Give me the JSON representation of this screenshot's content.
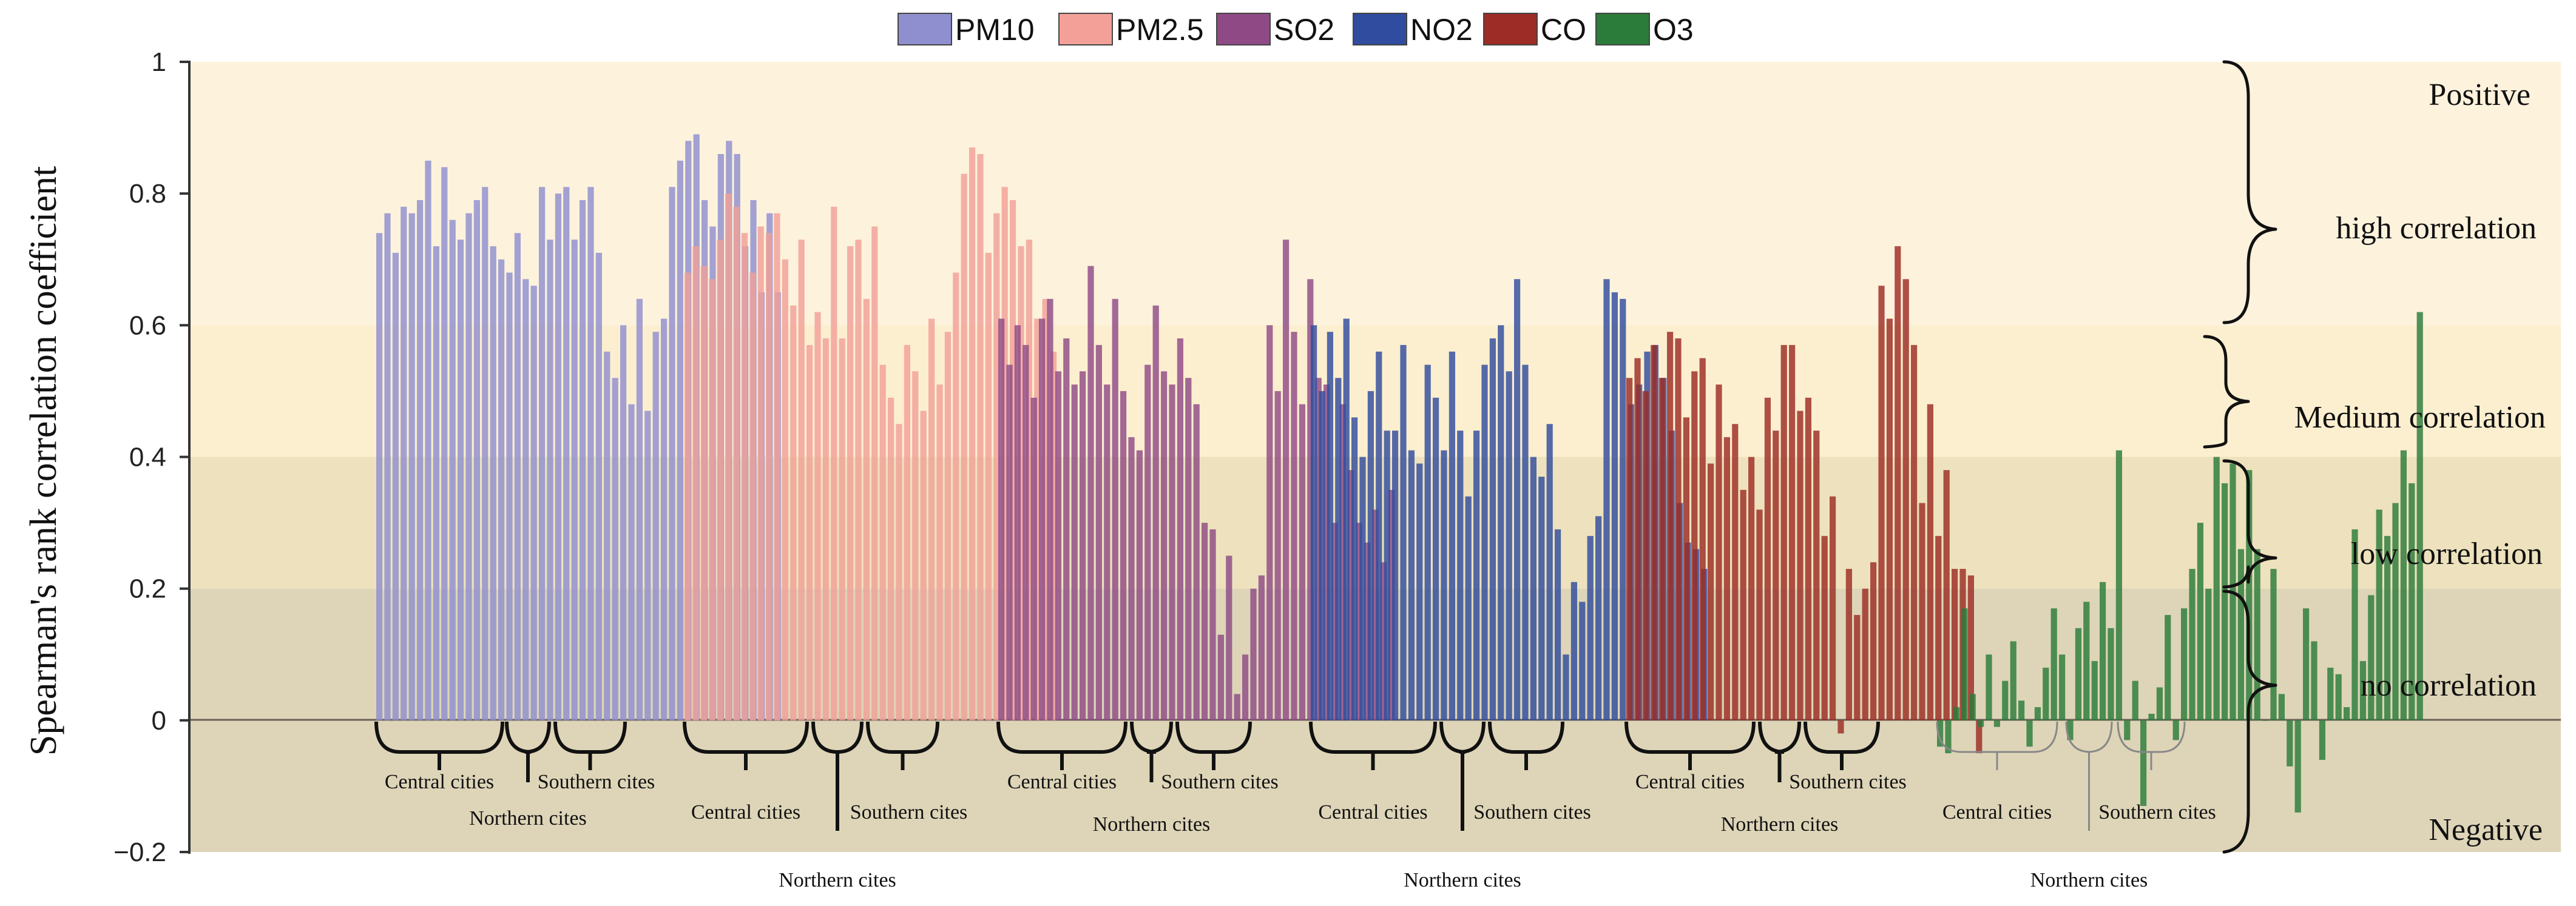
{
  "chart_data": {
    "type": "bar",
    "title": "",
    "ylabel": "Spearman's rank correlation coefficient",
    "xlabel": "",
    "ylim": [
      -0.2,
      1.0
    ],
    "yticks": [
      "1",
      "0.8",
      "0.6",
      "0.4",
      "0.2",
      "0",
      "−0.2"
    ],
    "legend_position": "top-center",
    "bands": [
      {
        "name": "high",
        "from": 0.6,
        "to": 1.0,
        "color": "#fdf2dc"
      },
      {
        "name": "medium",
        "from": 0.4,
        "to": 0.6,
        "color": "#fcefcf"
      },
      {
        "name": "low",
        "from": 0.2,
        "to": 0.4,
        "color": "#ede2bd"
      },
      {
        "name": "none",
        "from": -0.2,
        "to": 0.2,
        "color": "#ded5b8"
      }
    ],
    "bracket_labels": {
      "positive": "Positive",
      "high": "high correlation",
      "medium": "Medium correlation",
      "low": "low correlation",
      "none": "no correlation",
      "negative": "Negative"
    },
    "group_labels": {
      "central": "Central cities",
      "northern": "Northern cites",
      "southern": "Southern cites"
    },
    "series": [
      {
        "name": "PM10",
        "color": "#8f8fcf",
        "values": [
          0.74,
          0.77,
          0.71,
          0.78,
          0.77,
          0.79,
          0.85,
          0.72,
          0.84,
          0.76,
          0.73,
          0.77,
          0.79,
          0.81,
          0.72,
          0.7,
          0.68,
          0.74,
          0.67,
          0.66,
          0.81,
          0.73,
          0.8,
          0.81,
          0.73,
          0.79,
          0.81,
          0.71,
          0.56,
          0.52,
          0.6,
          0.48,
          0.64,
          0.47,
          0.59,
          0.61,
          0.81,
          0.85,
          0.88,
          0.89,
          0.79,
          0.75,
          0.86,
          0.88,
          0.86,
          0.72,
          0.79,
          0.65,
          0.77,
          0.65
        ]
      },
      {
        "name": "PM2.5",
        "color": "#f2a098",
        "values": [
          0.68,
          0.72,
          0.69,
          0.67,
          0.73,
          0.8,
          0.78,
          0.74,
          0.68,
          0.75,
          0.74,
          0.77,
          0.7,
          0.63,
          0.73,
          0.57,
          0.62,
          0.58,
          0.78,
          0.58,
          0.72,
          0.73,
          0.64,
          0.75,
          0.54,
          0.49,
          0.45,
          0.57,
          0.53,
          0.47,
          0.61,
          0.51,
          0.59,
          0.68,
          0.83,
          0.87,
          0.86,
          0.71,
          0.77,
          0.81,
          0.79,
          0.72,
          0.73,
          0.61,
          0.64,
          0.56
        ]
      },
      {
        "name": "SO2",
        "color": "#8f4a86",
        "values": [
          0.61,
          0.54,
          0.6,
          0.57,
          0.49,
          0.61,
          0.64,
          0.53,
          0.58,
          0.51,
          0.53,
          0.69,
          0.57,
          0.51,
          0.64,
          0.5,
          0.43,
          0.41,
          0.54,
          0.63,
          0.53,
          0.51,
          0.58,
          0.52,
          0.48,
          0.3,
          0.29,
          0.13,
          0.25,
          0.04,
          0.1,
          0.2,
          0.22,
          0.6,
          0.5,
          0.73,
          0.59,
          0.48,
          0.67,
          0.52,
          0.51,
          0.3,
          0.48,
          0.38,
          0.3,
          0.27,
          0.32,
          0.24,
          0.35
        ]
      },
      {
        "name": "NO2",
        "color": "#2f4c9e",
        "values": [
          0.6,
          0.5,
          0.59,
          0.52,
          0.61,
          0.46,
          0.4,
          0.5,
          0.56,
          0.44,
          0.44,
          0.57,
          0.41,
          0.39,
          0.54,
          0.49,
          0.41,
          0.56,
          0.44,
          0.34,
          0.44,
          0.54,
          0.58,
          0.6,
          0.53,
          0.67,
          0.54,
          0.4,
          0.37,
          0.45,
          0.29,
          0.1,
          0.21,
          0.18,
          0.28,
          0.31,
          0.67,
          0.65,
          0.64,
          0.48,
          0.51,
          0.56,
          0.57,
          0.52,
          0.44,
          0.33,
          0.27,
          0.26,
          0.23
        ]
      },
      {
        "name": "CO",
        "color": "#9c2c25",
        "values": [
          0.52,
          0.55,
          0.5,
          0.57,
          0.52,
          0.59,
          0.58,
          0.46,
          0.53,
          0.55,
          0.39,
          0.51,
          0.43,
          0.45,
          0.35,
          0.4,
          0.32,
          0.49,
          0.44,
          0.57,
          0.57,
          0.47,
          0.49,
          0.44,
          0.28,
          0.34,
          -0.02,
          0.23,
          0.16,
          0.2,
          0.24,
          0.66,
          0.61,
          0.72,
          0.67,
          0.57,
          0.33,
          0.48,
          0.28,
          0.38,
          0.23,
          0.23,
          0.22,
          -0.05
        ]
      },
      {
        "name": "O3",
        "color": "#2b7b3a",
        "values": [
          -0.04,
          -0.05,
          0.02,
          0.17,
          0.04,
          -0.01,
          0.1,
          -0.01,
          0.06,
          0.12,
          0.03,
          -0.04,
          0.02,
          0.08,
          0.17,
          0.1,
          -0.03,
          0.14,
          0.18,
          0.09,
          0.21,
          0.14,
          0.41,
          -0.03,
          0.06,
          -0.13,
          0.01,
          0.05,
          0.16,
          -0.03,
          0.17,
          0.23,
          0.3,
          0.2,
          0.4,
          0.36,
          0.39,
          0.26,
          0.38,
          0.26,
          0.0,
          0.23,
          0.04,
          -0.07,
          -0.14,
          0.17,
          0.12,
          -0.06,
          0.08,
          0.07,
          0.02,
          0.29,
          0.09,
          0.19,
          0.32,
          0.28,
          0.33,
          0.41,
          0.36,
          0.62
        ]
      }
    ]
  }
}
